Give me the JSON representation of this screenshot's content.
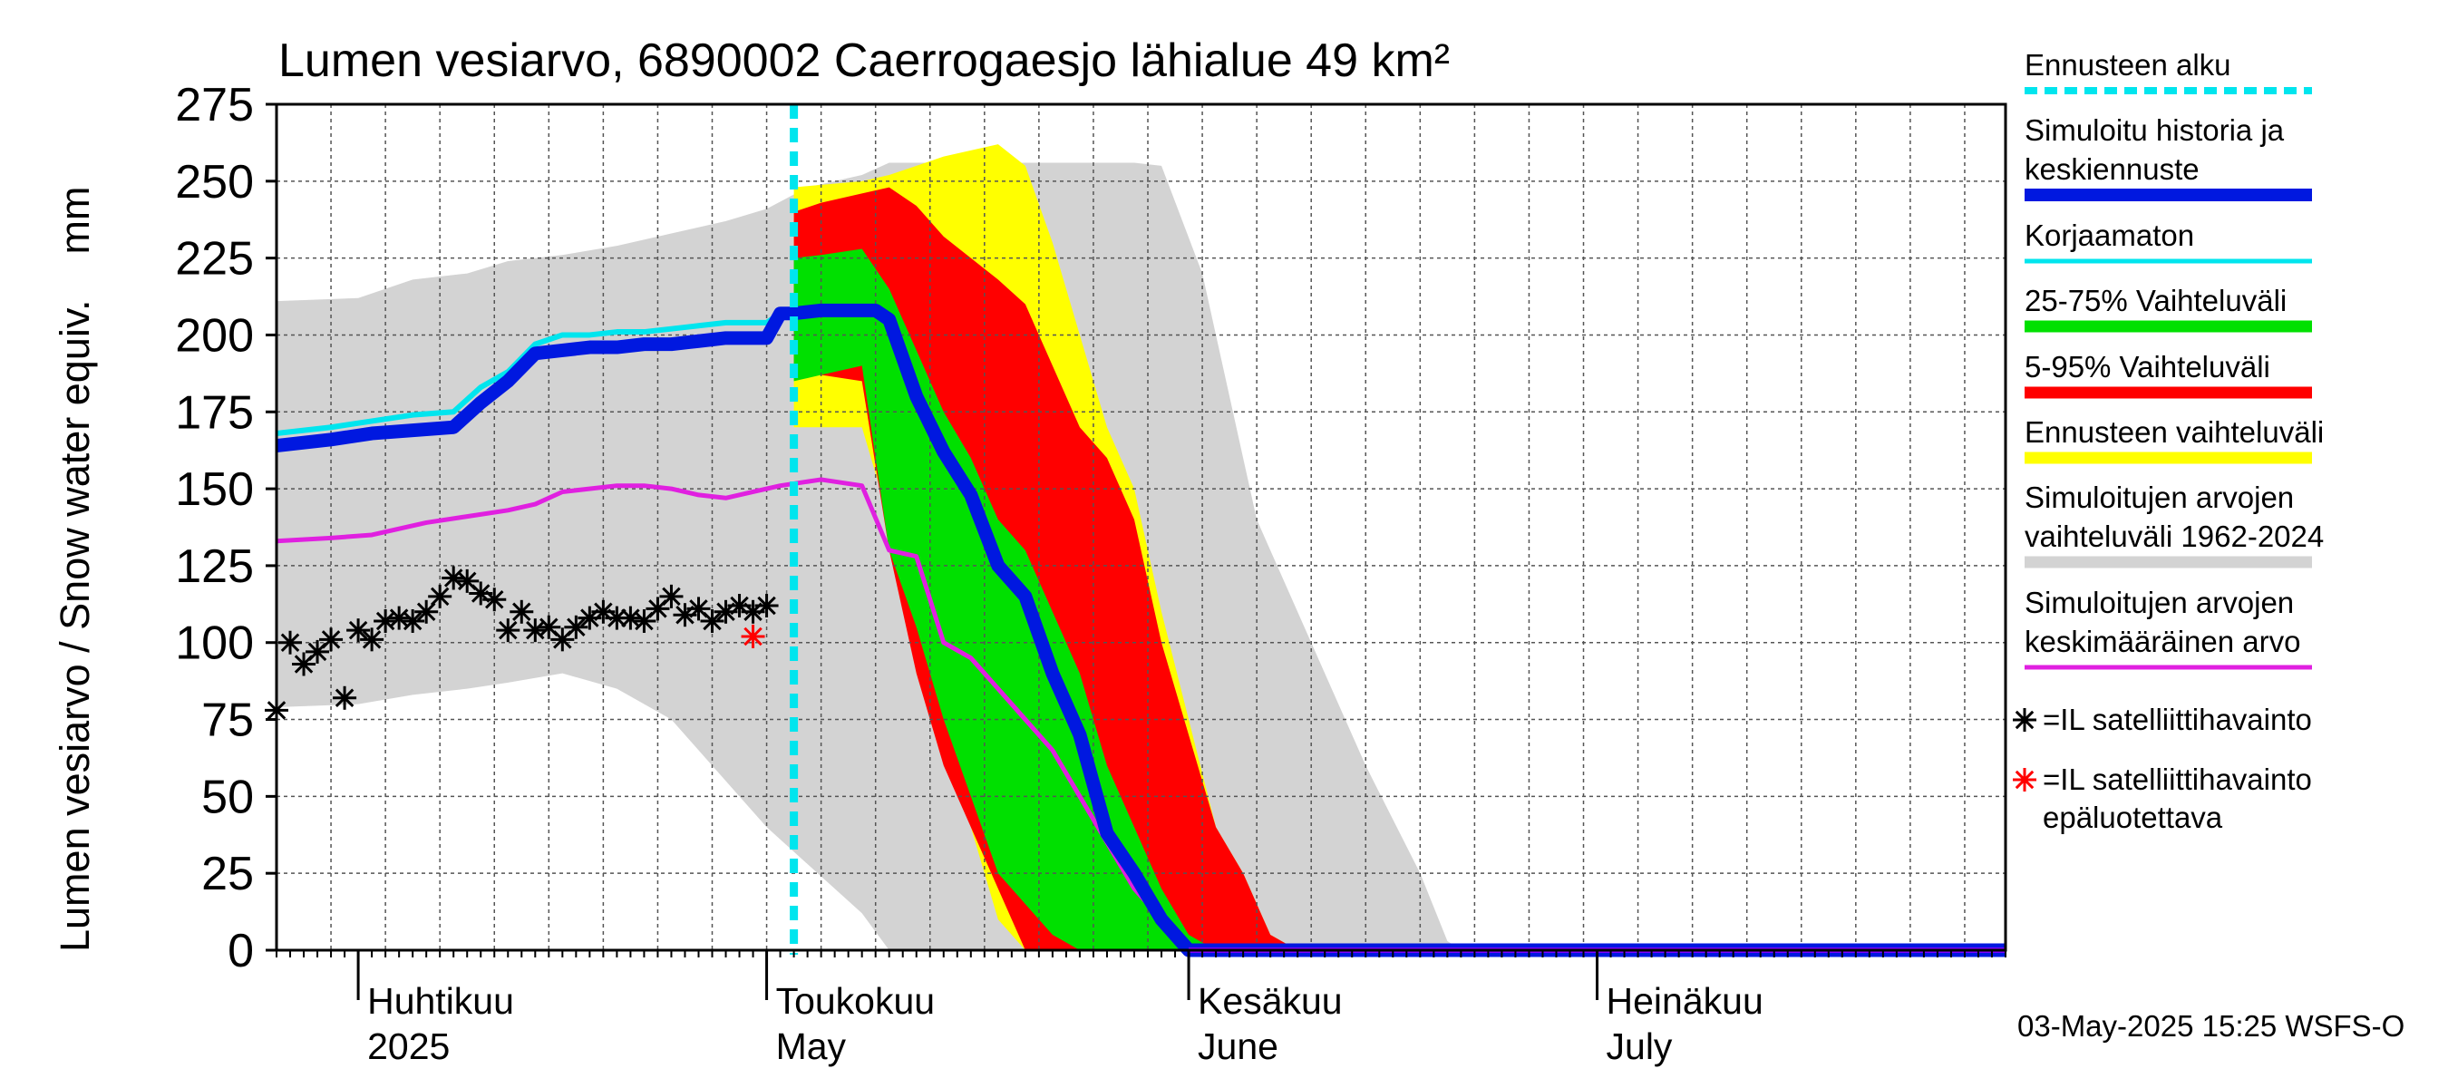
{
  "chart_data": {
    "type": "area",
    "title": "Lumen vesiarvo, 6890002 Caerrogaesjo lähialue 49 km²",
    "ylabel": "Lumen vesiarvo / Snow water equiv.    mm",
    "ylim": [
      0,
      275
    ],
    "yticks": [
      0,
      25,
      50,
      75,
      100,
      125,
      150,
      175,
      200,
      225,
      250,
      275
    ],
    "xlim": [
      "2025-03-26",
      "2025-07-31"
    ],
    "grid": true,
    "legend_position": "right",
    "month_labels": [
      {
        "line1": "Huhtikuu",
        "line2": "2025",
        "date": "2025-04-01"
      },
      {
        "line1": "Toukokuu",
        "line2": "May",
        "date": "2025-05-01"
      },
      {
        "line1": "Kesäkuu",
        "line2": "June",
        "date": "2025-06-01"
      },
      {
        "line1": "Heinäkuu",
        "line2": "July",
        "date": "2025-07-01"
      }
    ],
    "forecast_start": "2025-05-03",
    "legend": [
      {
        "text": [
          "Ennusteen alku"
        ],
        "color": "#00e5ee",
        "style": "dash"
      },
      {
        "text": [
          "Simuloitu historia ja",
          "keskiennuste"
        ],
        "color": "#0018e0",
        "style": "thick"
      },
      {
        "text": [
          "Korjaamaton"
        ],
        "color": "#00e5ee",
        "style": "thin"
      },
      {
        "text": [
          "25-75% Vaihteluväli"
        ],
        "color": "#00e000",
        "style": "band"
      },
      {
        "text": [
          "5-95% Vaihteluväli"
        ],
        "color": "#ff0000",
        "style": "band"
      },
      {
        "text": [
          "Ennusteen vaihteluväli"
        ],
        "color": "#ffff00",
        "style": "band"
      },
      {
        "text": [
          "Simuloitujen arvojen",
          "vaihteluväli 1962-2024"
        ],
        "color": "#d3d3d3",
        "style": "band"
      },
      {
        "text": [
          "Simuloitujen arvojen",
          "keskimääräinen arvo"
        ],
        "color": "#e020e0",
        "style": "thin"
      },
      {
        "text": [
          "=IL satelliittihavainto"
        ],
        "color": "#000000",
        "style": "star"
      },
      {
        "text": [
          "=IL satelliittihavainto",
          "epäluotettava"
        ],
        "color": "#ff0000",
        "style": "star"
      }
    ],
    "timestamp": "03-May-2025 15:25 WSFS-O",
    "series": [
      {
        "name": "Simuloitujen arvojen vaihteluväli 1962-2024",
        "kind": "band",
        "color": "#d3d3d3",
        "x": [
          "2025-03-26",
          "2025-04-01",
          "2025-04-05",
          "2025-04-09",
          "2025-04-12",
          "2025-04-16",
          "2025-04-20",
          "2025-04-24",
          "2025-04-28",
          "2025-05-01",
          "2025-05-04",
          "2025-05-08",
          "2025-05-10",
          "2025-05-14",
          "2025-05-20",
          "2025-05-26",
          "2025-05-28",
          "2025-05-30",
          "2025-06-02",
          "2025-06-06",
          "2025-06-10",
          "2025-06-14",
          "2025-06-18",
          "2025-06-20",
          "2025-06-21"
        ],
        "upper": [
          211,
          212,
          218,
          220,
          224,
          226,
          229,
          233,
          237,
          241,
          248,
          252,
          256,
          256,
          256,
          256,
          256,
          255,
          220,
          140,
          100,
          60,
          25,
          3,
          0
        ],
        "lower": [
          79,
          80,
          83,
          85,
          87,
          90,
          85,
          75,
          55,
          40,
          28,
          12,
          0,
          0,
          0,
          0,
          0,
          0,
          0,
          0,
          0,
          0,
          0,
          0,
          0
        ]
      },
      {
        "name": "Ennusteen vaihteluväli",
        "kind": "band",
        "color": "#ffff00",
        "x": [
          "2025-05-03",
          "2025-05-08",
          "2025-05-10",
          "2025-05-12",
          "2025-05-14",
          "2025-05-16",
          "2025-05-18",
          "2025-05-20",
          "2025-05-22",
          "2025-05-24",
          "2025-05-26",
          "2025-05-28",
          "2025-05-30",
          "2025-06-01",
          "2025-06-03",
          "2025-06-05",
          "2025-06-07",
          "2025-06-09"
        ],
        "upper": [
          248,
          250,
          252,
          255,
          258,
          260,
          262,
          255,
          230,
          200,
          170,
          150,
          110,
          75,
          40,
          25,
          5,
          0
        ],
        "lower": [
          170,
          170,
          140,
          90,
          70,
          40,
          10,
          0,
          0,
          0,
          0,
          0,
          0,
          0,
          0,
          0,
          0,
          0
        ]
      },
      {
        "name": "5-95% Vaihteluväli",
        "kind": "band",
        "color": "#ff0000",
        "x": [
          "2025-05-03",
          "2025-05-05",
          "2025-05-08",
          "2025-05-10",
          "2025-05-12",
          "2025-05-14",
          "2025-05-16",
          "2025-05-18",
          "2025-05-20",
          "2025-05-22",
          "2025-05-24",
          "2025-05-26",
          "2025-05-28",
          "2025-05-30",
          "2025-06-01",
          "2025-06-03",
          "2025-06-05",
          "2025-06-07",
          "2025-06-09"
        ],
        "upper": [
          240,
          243,
          246,
          248,
          242,
          232,
          225,
          218,
          210,
          190,
          170,
          160,
          140,
          100,
          70,
          40,
          25,
          5,
          0
        ],
        "lower": [
          187,
          187,
          185,
          130,
          90,
          60,
          40,
          20,
          0,
          0,
          0,
          0,
          0,
          0,
          0,
          0,
          0,
          0,
          0
        ]
      },
      {
        "name": "25-75% Vaihteluväli",
        "kind": "band",
        "color": "#00e000",
        "x": [
          "2025-05-03",
          "2025-05-05",
          "2025-05-08",
          "2025-05-10",
          "2025-05-12",
          "2025-05-14",
          "2025-05-16",
          "2025-05-18",
          "2025-05-20",
          "2025-05-22",
          "2025-05-24",
          "2025-05-26",
          "2025-05-28",
          "2025-05-30",
          "2025-06-01",
          "2025-06-03",
          "2025-06-05"
        ],
        "upper": [
          225,
          226,
          228,
          215,
          195,
          175,
          160,
          140,
          130,
          110,
          90,
          60,
          40,
          20,
          5,
          0,
          0
        ],
        "lower": [
          185,
          187,
          190,
          130,
          105,
          75,
          50,
          25,
          15,
          5,
          0,
          0,
          0,
          0,
          0,
          0,
          0
        ]
      },
      {
        "name": "Simuloitujen arvojen keskimääräinen arvo",
        "kind": "line",
        "color": "#e020e0",
        "width": 5,
        "x": [
          "2025-03-26",
          "2025-03-30",
          "2025-04-02",
          "2025-04-04",
          "2025-04-06",
          "2025-04-09",
          "2025-04-12",
          "2025-04-14",
          "2025-04-16",
          "2025-04-20",
          "2025-04-22",
          "2025-04-24",
          "2025-04-26",
          "2025-04-28",
          "2025-04-30",
          "2025-05-02",
          "2025-05-05",
          "2025-05-08",
          "2025-05-10",
          "2025-05-12",
          "2025-05-14",
          "2025-05-16",
          "2025-05-18",
          "2025-05-20",
          "2025-05-22",
          "2025-05-24",
          "2025-05-26",
          "2025-05-28",
          "2025-05-30",
          "2025-06-01",
          "2025-06-03",
          "2025-06-05"
        ],
        "y": [
          133,
          134,
          135,
          137,
          139,
          141,
          143,
          145,
          149,
          151,
          151,
          150,
          148,
          147,
          149,
          151,
          153,
          151,
          130,
          128,
          100,
          95,
          85,
          75,
          65,
          50,
          35,
          20,
          10,
          0,
          0,
          0
        ]
      },
      {
        "name": "Korjaamaton",
        "kind": "line",
        "color": "#00e5ee",
        "width": 6,
        "x": [
          "2025-03-26",
          "2025-03-30",
          "2025-04-02",
          "2025-04-05",
          "2025-04-08",
          "2025-04-10",
          "2025-04-12",
          "2025-04-14",
          "2025-04-16",
          "2025-04-18",
          "2025-04-20",
          "2025-04-22",
          "2025-04-24",
          "2025-04-26",
          "2025-04-28",
          "2025-05-01",
          "2025-05-02",
          "2025-05-03"
        ],
        "y": [
          168,
          170,
          172,
          174,
          175,
          183,
          188,
          197,
          200,
          200,
          201,
          201,
          202,
          203,
          204,
          204,
          207,
          207
        ]
      },
      {
        "name": "Simuloitu historia ja keskiennuste",
        "kind": "line",
        "color": "#0018e0",
        "width": 15,
        "x": [
          "2025-03-26",
          "2025-03-30",
          "2025-04-02",
          "2025-04-05",
          "2025-04-08",
          "2025-04-10",
          "2025-04-12",
          "2025-04-14",
          "2025-04-16",
          "2025-04-18",
          "2025-04-20",
          "2025-04-22",
          "2025-04-24",
          "2025-04-26",
          "2025-04-28",
          "2025-05-01",
          "2025-05-02",
          "2025-05-03",
          "2025-05-05",
          "2025-05-07",
          "2025-05-09",
          "2025-05-10",
          "2025-05-12",
          "2025-05-14",
          "2025-05-16",
          "2025-05-18",
          "2025-05-20",
          "2025-05-22",
          "2025-05-24",
          "2025-05-26",
          "2025-05-28",
          "2025-05-30",
          "2025-06-01",
          "2025-06-03",
          "2025-06-05",
          "2025-07-31"
        ],
        "y": [
          164,
          166,
          168,
          169,
          170,
          178,
          185,
          194,
          195,
          196,
          196,
          197,
          197,
          198,
          199,
          199,
          207,
          207,
          208,
          208,
          208,
          205,
          180,
          162,
          148,
          125,
          115,
          90,
          70,
          38,
          25,
          10,
          0,
          0,
          0,
          0
        ]
      },
      {
        "name": "=IL satelliittihavainto",
        "kind": "points",
        "color": "#000000",
        "x": [
          "2025-03-26",
          "2025-03-27",
          "2025-03-28",
          "2025-03-29",
          "2025-03-30",
          "2025-03-31",
          "2025-04-01",
          "2025-04-02",
          "2025-04-03",
          "2025-04-04",
          "2025-04-05",
          "2025-04-06",
          "2025-04-07",
          "2025-04-08",
          "2025-04-09",
          "2025-04-10",
          "2025-04-11",
          "2025-04-12",
          "2025-04-13",
          "2025-04-14",
          "2025-04-15",
          "2025-04-16",
          "2025-04-17",
          "2025-04-18",
          "2025-04-19",
          "2025-04-20",
          "2025-04-21",
          "2025-04-22",
          "2025-04-23",
          "2025-04-24",
          "2025-04-25",
          "2025-04-26",
          "2025-04-27",
          "2025-04-28",
          "2025-04-29",
          "2025-04-30",
          "2025-05-01"
        ],
        "y": [
          78,
          100,
          93,
          97,
          101,
          82,
          104,
          101,
          107,
          108,
          107,
          110,
          115,
          121,
          120,
          116,
          114,
          104,
          110,
          104,
          105,
          101,
          105,
          108,
          110,
          108,
          108,
          107,
          111,
          115,
          109,
          111,
          107,
          110,
          112,
          110,
          112
        ]
      },
      {
        "name": "=IL satelliittihavainto epäluotettava",
        "kind": "points",
        "color": "#ff0000",
        "x": [
          "2025-04-30"
        ],
        "y": [
          102
        ]
      }
    ]
  }
}
